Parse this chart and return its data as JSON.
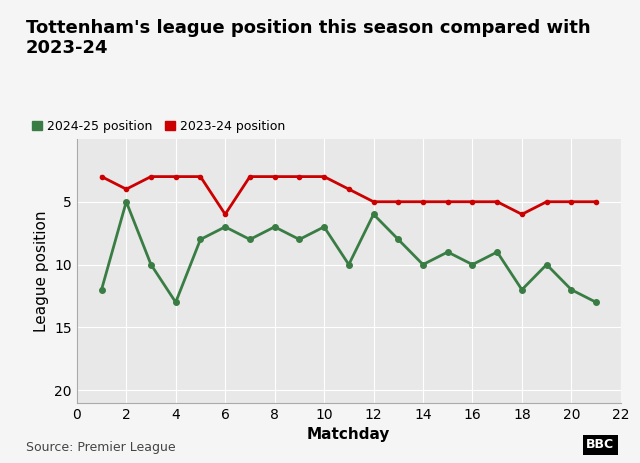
{
  "title": "Tottenham's league position this season compared with\n2023-24",
  "xlabel": "Matchday",
  "ylabel": "League position",
  "source": "Source: Premier League",
  "legend_2425": "2024-25 position",
  "legend_2324": "2023-24 position",
  "season_2425_x": [
    1,
    2,
    3,
    4,
    5,
    6,
    7,
    8,
    9,
    10,
    11,
    12,
    13,
    14,
    15,
    16,
    17,
    18,
    19,
    20,
    21
  ],
  "season_2425_y": [
    12,
    5,
    10,
    13,
    8,
    7,
    8,
    7,
    8,
    7,
    10,
    6,
    8,
    10,
    9,
    10,
    9,
    12,
    10,
    12,
    13
  ],
  "season_2324_x": [
    1,
    2,
    3,
    4,
    5,
    6,
    7,
    8,
    9,
    10,
    11,
    12,
    13,
    14,
    15,
    16,
    17,
    18,
    19,
    20,
    21
  ],
  "season_2324_y": [
    3,
    4,
    3,
    3,
    3,
    6,
    3,
    3,
    3,
    3,
    4,
    5,
    5,
    5,
    5,
    5,
    5,
    6,
    5,
    5,
    5
  ],
  "color_2425": "#3a7d44",
  "color_2324": "#cc0000",
  "bg_color": "#f5f5f5",
  "plot_bg_color": "#e8e8e8",
  "ylim_bottom": 21,
  "ylim_top": 0,
  "xlim_min": 0,
  "xlim_max": 22,
  "yticks": [
    5,
    10,
    15,
    20
  ],
  "xticks": [
    0,
    2,
    4,
    6,
    8,
    10,
    12,
    14,
    16,
    18,
    20,
    22
  ],
  "title_fontsize": 13,
  "axis_label_fontsize": 11,
  "tick_fontsize": 10,
  "legend_fontsize": 9,
  "source_fontsize": 9,
  "top_bar_color": "#e8b84b",
  "line_width": 2.0,
  "marker_size": 4,
  "marker_size_red": 3
}
